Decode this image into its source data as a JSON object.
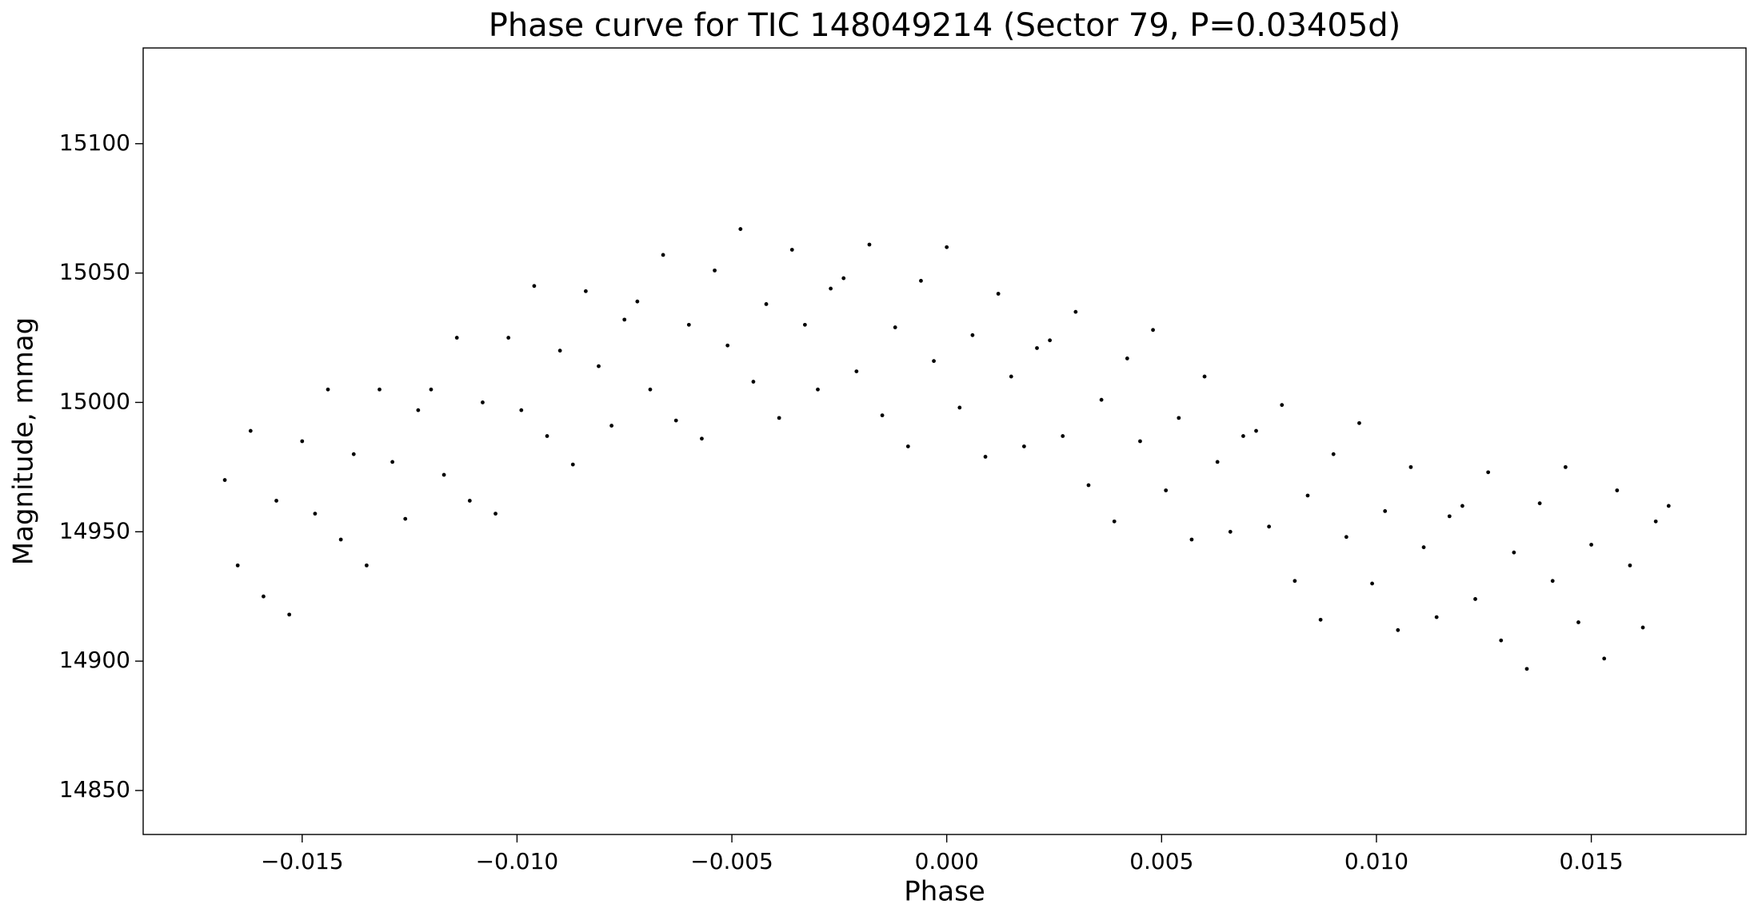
{
  "chart_data": {
    "type": "scatter",
    "title": "Phase curve for TIC 148049214 (Sector 79, P=0.03405d)",
    "xlabel": "Phase",
    "ylabel": "Magnitude, mmag",
    "xlim": [
      -0.0187,
      0.0186
    ],
    "ylim": [
      14833,
      15137
    ],
    "xticks": [
      {
        "value": -0.015,
        "label": "−0.015"
      },
      {
        "value": -0.01,
        "label": "−0.010"
      },
      {
        "value": -0.005,
        "label": "−0.005"
      },
      {
        "value": 0,
        "label": "0.000"
      },
      {
        "value": 0.005,
        "label": "0.005"
      },
      {
        "value": 0.01,
        "label": "0.010"
      },
      {
        "value": 0.015,
        "label": "0.015"
      }
    ],
    "yticks": [
      14850,
      14900,
      14950,
      15000,
      15050,
      15100
    ],
    "grid": false,
    "series": [
      {
        "color": "#000000",
        "x": [
          -0.0168,
          -0.0165,
          -0.0162,
          -0.0159,
          -0.0156,
          -0.0153,
          -0.015,
          -0.0147,
          -0.0144,
          -0.0141,
          -0.0138,
          -0.0135,
          -0.0132,
          -0.0129,
          -0.0126,
          -0.0123,
          -0.012,
          -0.0117,
          -0.0114,
          -0.0111,
          -0.0108,
          -0.0105,
          -0.0102,
          -0.0099,
          -0.0096,
          -0.0093,
          -0.009,
          -0.0087,
          -0.0084,
          -0.0081,
          -0.0078,
          -0.0075,
          -0.0072,
          -0.0069,
          -0.0066,
          -0.0063,
          -0.006,
          -0.0057,
          -0.0054,
          -0.0051,
          -0.0048,
          -0.0045,
          -0.0042,
          -0.0039,
          -0.0036,
          -0.0033,
          -0.003,
          -0.0027,
          -0.0024,
          -0.0021,
          -0.0018,
          -0.0015,
          -0.0012,
          -0.0009,
          -0.0006,
          -0.0003,
          0,
          0.0003,
          0.0006,
          0.0009,
          0.0012,
          0.0015,
          0.0018,
          0.0021,
          0.0024,
          0.0027,
          0.003,
          0.0033,
          0.0036,
          0.0039,
          0.0042,
          0.0045,
          0.0048,
          0.0051,
          0.0054,
          0.0057,
          0.006,
          0.0063,
          0.0066,
          0.0069,
          0.0072,
          0.0075,
          0.0078,
          0.0081,
          0.0084,
          0.0087,
          0.009,
          0.0093,
          0.0096,
          0.0099,
          0.0102,
          0.0105,
          0.0108,
          0.0111,
          0.0114,
          0.0117,
          0.012,
          0.0123,
          0.0126,
          0.0129,
          0.0132,
          0.0135,
          0.0138,
          0.0141,
          0.0144,
          0.0147,
          0.015,
          0.0153,
          0.0156,
          0.0159,
          0.0162,
          0.0165,
          0.0168
        ],
        "values": [
          14970,
          14937,
          14989,
          14925,
          14962,
          14918,
          14985,
          14957,
          15005,
          14947,
          14980,
          14937,
          15005,
          14977,
          14955,
          14997,
          15005,
          14972,
          15025,
          14962,
          15000,
          14957,
          15025,
          14997,
          15045,
          14987,
          15020,
          14976,
          15043,
          15014,
          14991,
          15032,
          15039,
          15005,
          15057,
          14993,
          15030,
          14986,
          15051,
          15022,
          15067,
          15008,
          15038,
          14994,
          15059,
          15030,
          15005,
          15044,
          15048,
          15012,
          15061,
          14995,
          15029,
          14983,
          15047,
          15016,
          15060,
          14998,
          15026,
          14979,
          15042,
          15010,
          14983,
          15021,
          15024,
          14987,
          15035,
          14968,
          15001,
          14954,
          15017,
          14985,
          15028,
          14966,
          14994,
          14947,
          15010,
          14977,
          14950,
          14987,
          14989,
          14952,
          14999,
          14931,
          14964,
          14916,
          14980,
          14948,
          14992,
          14930,
          14958,
          14912,
          14975,
          14944,
          14917,
          14956,
          14960,
          14924,
          14973,
          14908,
          14942,
          14897,
          14961,
          14931,
          14975,
          14915,
          14945,
          14901,
          14966,
          14937,
          14913,
          14954,
          14960
        ]
      }
    ]
  }
}
